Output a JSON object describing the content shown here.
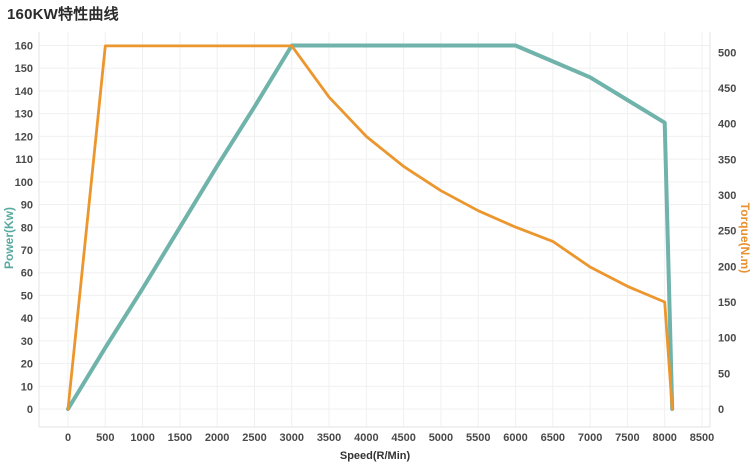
{
  "chart_data": {
    "type": "line",
    "title": "160KW特性曲线",
    "xlabel": "Speed(R/Min)",
    "xlim": [
      0,
      8500
    ],
    "x_ticks": [
      0,
      500,
      1000,
      1500,
      2000,
      2500,
      3000,
      3500,
      4000,
      4500,
      5000,
      5500,
      6000,
      6500,
      7000,
      7500,
      8000,
      8500
    ],
    "x": [
      0,
      500,
      1000,
      1500,
      2000,
      2500,
      3000,
      3500,
      4000,
      4500,
      5000,
      5500,
      6000,
      6500,
      7000,
      7500,
      8000,
      8100
    ],
    "series": [
      {
        "name": "Power(Kw)",
        "axis": "left",
        "color": "#6fb3ab",
        "line_width": 4,
        "values": [
          0,
          27,
          53,
          80,
          107,
          133,
          160,
          160,
          160,
          160,
          160,
          160,
          160,
          153,
          146,
          136,
          126,
          0
        ]
      },
      {
        "name": "Torque(N.m)",
        "axis": "right",
        "color": "#ec962e",
        "line_width": 2.8,
        "values": [
          0,
          509,
          509,
          509,
          509,
          509,
          509,
          437,
          382,
          340,
          306,
          278,
          255,
          235,
          199,
          172,
          150,
          0
        ]
      }
    ],
    "left_axis": {
      "label": "Power(Kw)",
      "label_color": "#58aaa0",
      "min": 0,
      "max": 160,
      "step": 10,
      "ticks": [
        0,
        10,
        20,
        30,
        40,
        50,
        60,
        70,
        80,
        90,
        100,
        110,
        120,
        130,
        140,
        150,
        160
      ]
    },
    "right_axis": {
      "label": "Torque(N.m)",
      "label_color": "#e8912f",
      "min": 0,
      "max": 500,
      "step": 50,
      "ticks": [
        0,
        50,
        100,
        150,
        200,
        250,
        300,
        350,
        400,
        450,
        500
      ]
    },
    "grid": true,
    "legend": "none",
    "style": {
      "grid_color": "#f0f0f0",
      "axis_line_color": "#e3e3e3",
      "tick_text_color": "#4a4a4a",
      "xlabel_color": "#333333",
      "background": "#ffffff"
    }
  }
}
